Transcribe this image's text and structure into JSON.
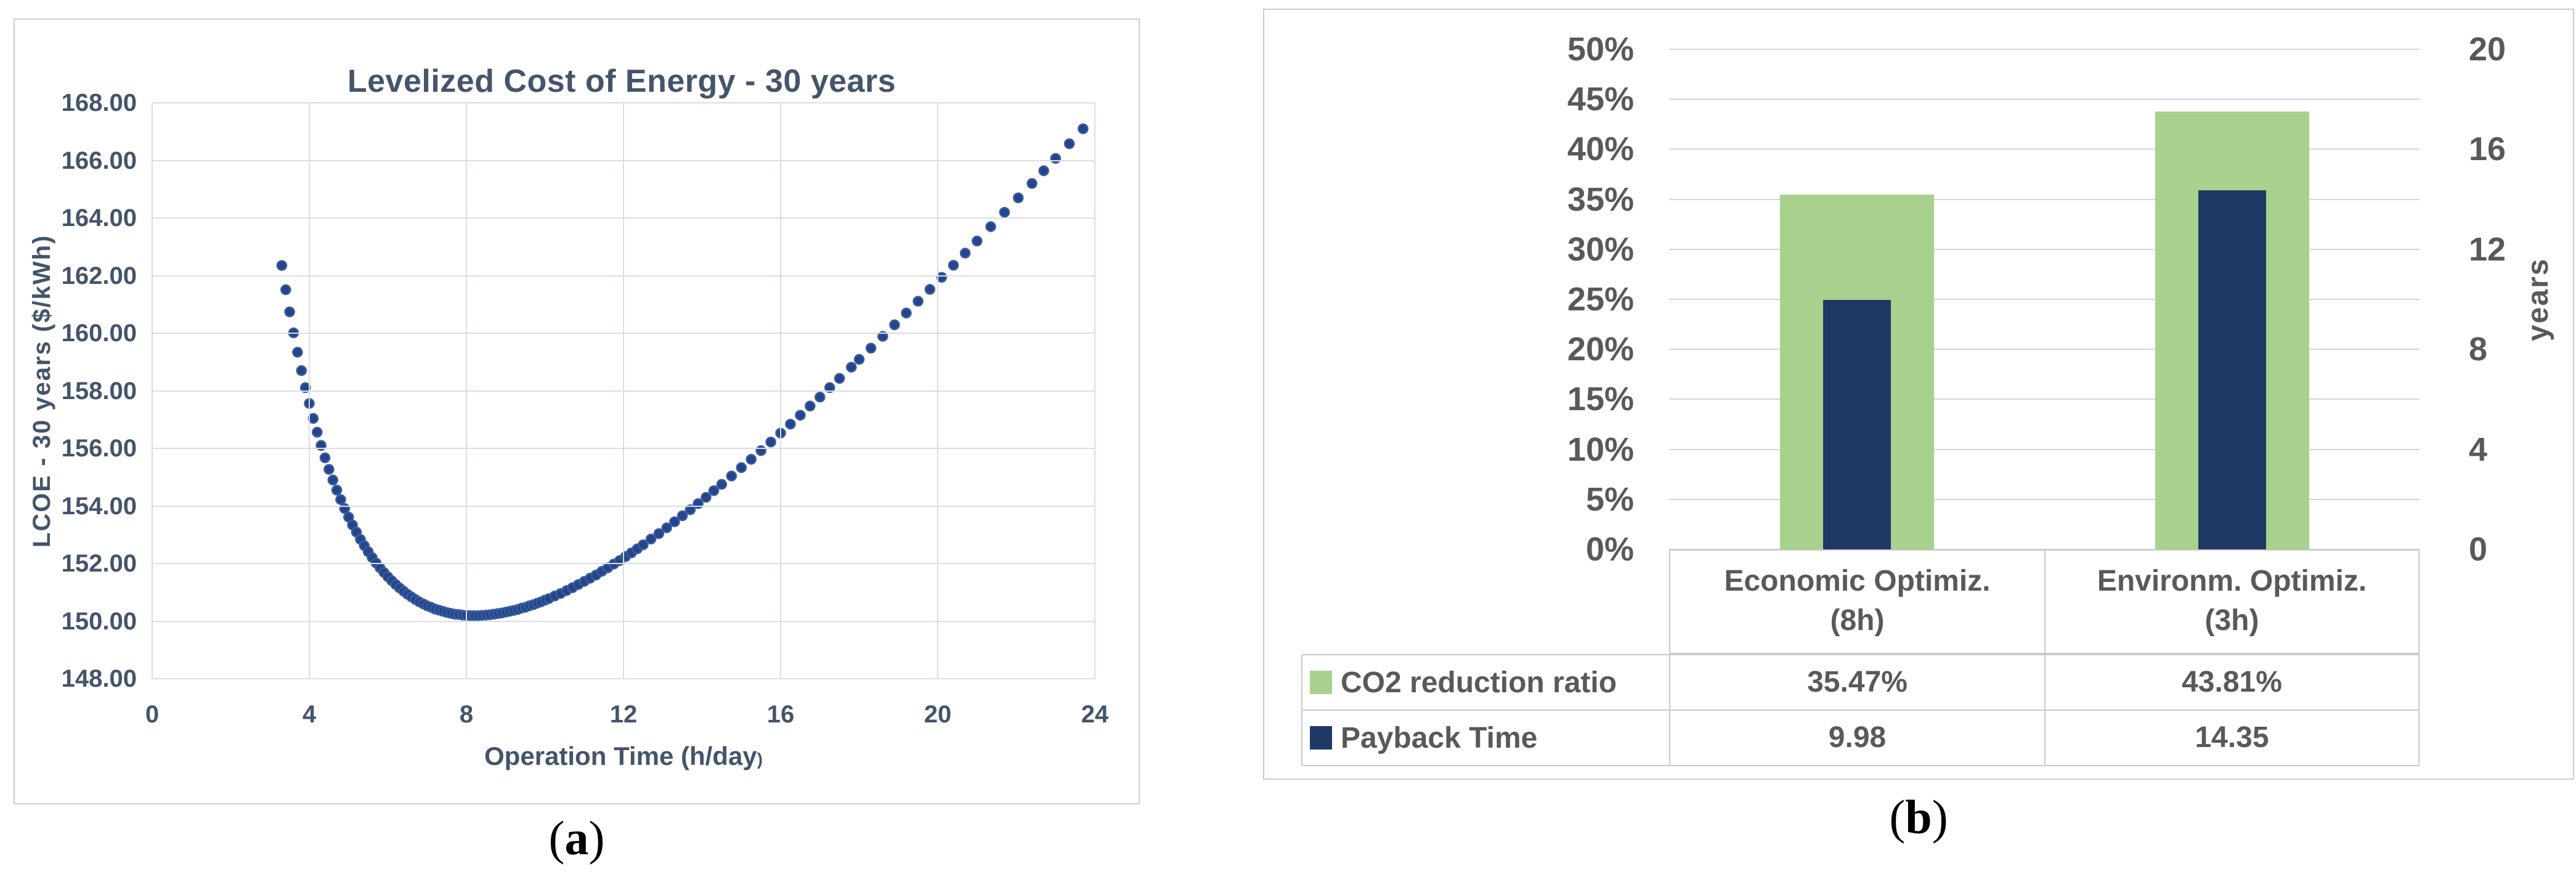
{
  "figure": {
    "captions": [
      "a",
      "b"
    ],
    "caption_paren_open": "(",
    "caption_paren_close": ")"
  },
  "colors": {
    "left_text": "#44546a",
    "left_grid": "#d9dde6",
    "marker_fill": "#25458a",
    "marker_stroke": "#3a5b9f",
    "right_text": "#595959",
    "right_grid": "#d6d6d6",
    "co2_green": "#a9d18e",
    "payback_navy": "#1f3864",
    "table_border": "#c9c9c9"
  },
  "chart_data": [
    {
      "type": "scatter",
      "title": "Levelized Cost of Energy - 30 years",
      "xlabel": "Operation Time (h/day)",
      "xlabel_main": "Operation Time (h/day",
      "xlabel_paren": ")",
      "ylabel": "LCOE - 30 years ($/kWh)",
      "xlim": [
        0,
        24
      ],
      "ylim": [
        148,
        168
      ],
      "x_ticks": [
        "0",
        "4",
        "8",
        "12",
        "16",
        "20",
        "24"
      ],
      "y_ticks": [
        "168.00",
        "166.00",
        "164.00",
        "162.00",
        "160.00",
        "158.00",
        "156.00",
        "154.00",
        "152.00",
        "150.00",
        "148.00"
      ],
      "grid": true,
      "legend_position": "none",
      "marker_color": "#25458a",
      "points": [
        [
          3.3,
          162.35
        ],
        [
          3.4,
          161.51
        ],
        [
          3.5,
          160.74
        ],
        [
          3.6,
          160.01
        ],
        [
          3.7,
          159.34
        ],
        [
          3.8,
          158.7
        ],
        [
          3.9,
          158.11
        ],
        [
          4.0,
          157.56
        ],
        [
          4.1,
          157.04
        ],
        [
          4.2,
          156.56
        ],
        [
          4.3,
          156.1
        ],
        [
          4.4,
          155.67
        ],
        [
          4.5,
          155.27
        ],
        [
          4.6,
          154.9
        ],
        [
          4.7,
          154.55
        ],
        [
          4.8,
          154.22
        ],
        [
          4.9,
          153.91
        ],
        [
          5.0,
          153.61
        ],
        [
          5.1,
          153.34
        ],
        [
          5.2,
          153.09
        ],
        [
          5.3,
          152.84
        ],
        [
          5.4,
          152.62
        ],
        [
          5.5,
          152.41
        ],
        [
          5.6,
          152.21
        ],
        [
          5.7,
          152.02
        ],
        [
          5.8,
          151.85
        ],
        [
          5.9,
          151.69
        ],
        [
          6.0,
          151.54
        ],
        [
          6.1,
          151.4
        ],
        [
          6.2,
          151.27
        ],
        [
          6.3,
          151.15
        ],
        [
          6.4,
          151.04
        ],
        [
          6.5,
          150.93
        ],
        [
          6.6,
          150.84
        ],
        [
          6.7,
          150.75
        ],
        [
          6.8,
          150.67
        ],
        [
          6.9,
          150.6
        ],
        [
          7.0,
          150.53
        ],
        [
          7.1,
          150.48
        ],
        [
          7.2,
          150.42
        ],
        [
          7.3,
          150.38
        ],
        [
          7.4,
          150.34
        ],
        [
          7.5,
          150.3
        ],
        [
          7.6,
          150.27
        ],
        [
          7.7,
          150.24
        ],
        [
          7.8,
          150.23
        ],
        [
          7.9,
          150.21
        ],
        [
          8.0,
          150.2
        ],
        [
          8.1,
          150.19
        ],
        [
          8.2,
          150.19
        ],
        [
          8.3,
          150.19
        ],
        [
          8.4,
          150.2
        ],
        [
          8.5,
          150.21
        ],
        [
          8.6,
          150.22
        ],
        [
          8.7,
          150.24
        ],
        [
          8.8,
          150.26
        ],
        [
          8.9,
          150.28
        ],
        [
          9.0,
          150.31
        ],
        [
          9.1,
          150.34
        ],
        [
          9.2,
          150.37
        ],
        [
          9.3,
          150.4
        ],
        [
          9.4,
          150.45
        ],
        [
          9.5,
          150.48
        ],
        [
          9.6,
          150.53
        ],
        [
          9.7,
          150.57
        ],
        [
          9.8,
          150.62
        ],
        [
          9.9,
          150.67
        ],
        [
          10.0,
          150.73
        ],
        [
          10.1,
          150.78
        ],
        [
          10.25,
          150.87
        ],
        [
          10.4,
          150.96
        ],
        [
          10.55,
          151.06
        ],
        [
          10.7,
          151.16
        ],
        [
          10.85,
          151.27
        ],
        [
          11.0,
          151.38
        ],
        [
          11.15,
          151.49
        ],
        [
          11.3,
          151.6
        ],
        [
          11.45,
          151.73
        ],
        [
          11.6,
          151.85
        ],
        [
          11.75,
          151.98
        ],
        [
          11.9,
          152.1
        ],
        [
          12.05,
          152.24
        ],
        [
          12.2,
          152.37
        ],
        [
          12.35,
          152.51
        ],
        [
          12.5,
          152.65
        ],
        [
          12.7,
          152.85
        ],
        [
          12.9,
          153.04
        ],
        [
          13.1,
          153.24
        ],
        [
          13.3,
          153.45
        ],
        [
          13.5,
          153.66
        ],
        [
          13.7,
          153.87
        ],
        [
          13.9,
          154.08
        ],
        [
          14.1,
          154.3
        ],
        [
          14.3,
          154.53
        ],
        [
          14.5,
          154.75
        ],
        [
          14.75,
          155.04
        ],
        [
          15.0,
          155.33
        ],
        [
          15.25,
          155.62
        ],
        [
          15.5,
          155.92
        ],
        [
          15.75,
          156.22
        ],
        [
          16.0,
          156.53
        ],
        [
          16.25,
          156.84
        ],
        [
          16.5,
          157.15
        ],
        [
          16.75,
          157.47
        ],
        [
          17.0,
          157.78
        ],
        [
          17.25,
          158.11
        ],
        [
          17.5,
          158.43
        ],
        [
          17.8,
          158.82
        ],
        [
          18.0,
          159.09
        ],
        [
          18.3,
          159.48
        ],
        [
          18.6,
          159.89
        ],
        [
          18.9,
          160.29
        ],
        [
          19.2,
          160.7
        ],
        [
          19.5,
          161.11
        ],
        [
          19.8,
          161.52
        ],
        [
          20.1,
          161.94
        ],
        [
          20.4,
          162.36
        ],
        [
          20.7,
          162.78
        ],
        [
          21.0,
          163.2
        ],
        [
          21.35,
          163.7
        ],
        [
          21.7,
          164.2
        ],
        [
          22.05,
          164.7
        ],
        [
          22.4,
          165.2
        ],
        [
          22.7,
          165.64
        ],
        [
          23.0,
          166.07
        ],
        [
          23.35,
          166.58
        ],
        [
          23.7,
          167.1
        ]
      ]
    },
    {
      "type": "bar",
      "categories": [
        {
          "line1": "Economic Optimiz.",
          "line2": "(8h)"
        },
        {
          "line1": "Environm. Optimiz.",
          "line2": "(3h)"
        }
      ],
      "series": [
        {
          "name": "CO2 reduction ratio",
          "axis": "left",
          "color": "#a9d18e",
          "values": [
            35.47,
            43.81
          ],
          "unit": "%",
          "display": [
            "35.47%",
            "43.81%"
          ]
        },
        {
          "name": "Payback Time",
          "axis": "right",
          "color": "#1f3864",
          "values": [
            9.98,
            14.35
          ],
          "unit": "years",
          "display": [
            "9.98",
            "14.35"
          ]
        }
      ],
      "left_axis": {
        "min": 0,
        "max": 50,
        "ticks": [
          "50%",
          "45%",
          "40%",
          "35%",
          "30%",
          "25%",
          "20%",
          "15%",
          "10%",
          "5%",
          "0%"
        ]
      },
      "right_axis": {
        "min": 0,
        "max": 20,
        "ticks": [
          "20",
          "16",
          "12",
          "8",
          "4",
          "0"
        ],
        "tick_values": [
          20,
          16,
          12,
          8,
          4,
          0
        ],
        "label": "years"
      },
      "grid": true,
      "legend_position": "table-left"
    }
  ]
}
